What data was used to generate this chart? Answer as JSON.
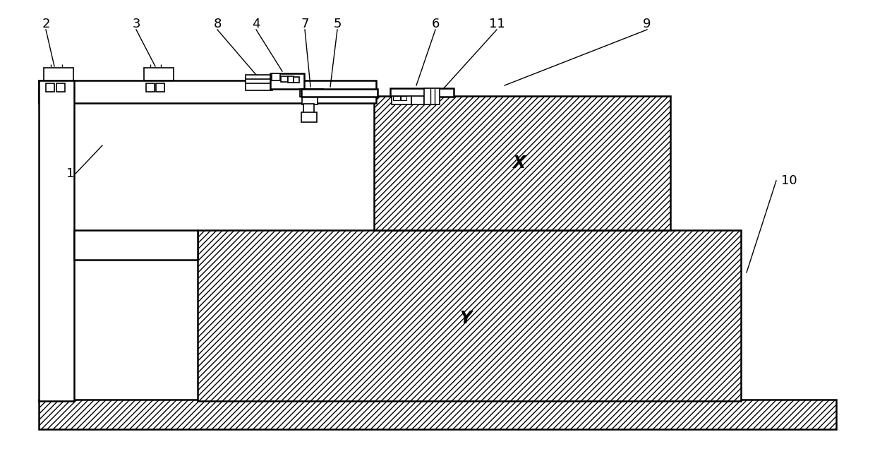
{
  "bg_color": "#ffffff",
  "line_color": "#000000",
  "fig_width": 12.4,
  "fig_height": 6.36,
  "dpi": 100
}
